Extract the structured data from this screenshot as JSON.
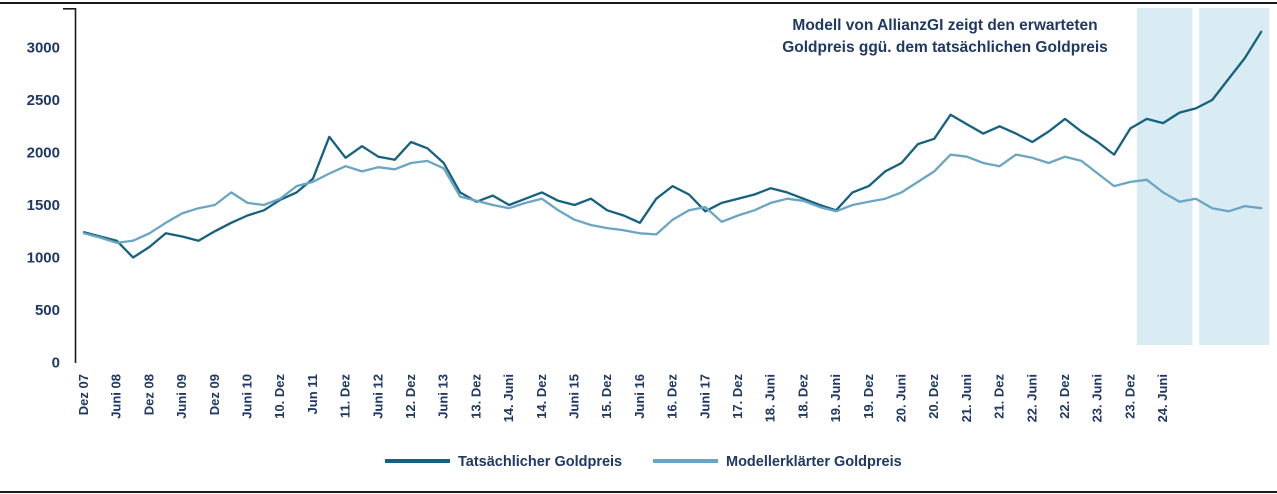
{
  "title": {
    "line1": "Modell von AllianzGI zeigt den erwarteten",
    "line2": "Goldpreis ggü. dem tatsächlichen Goldpreis",
    "color": "#1f3864"
  },
  "legend": {
    "items": [
      {
        "label": "Tatsächlicher Goldpreis",
        "color": "#15617f"
      },
      {
        "label": "Modellerklärter Goldpreis",
        "color": "#6aa5c4"
      }
    ]
  },
  "chart_data": {
    "type": "line",
    "title": "Modell von AllianzGI zeigt den erwarteten Goldpreis ggü. dem tatsächlichen Goldpreis",
    "xlabel": "",
    "ylabel": "",
    "grid": false,
    "legend_position": "bottom-center",
    "x_unit": "half-year tick index starting Dez 07, samples every 0.5 index (quarterly)",
    "x_tick_labels": [
      "Dez 07",
      "Juni 08",
      "Dez 08",
      "Juni 09",
      "Dez 09",
      "Juni 10",
      "10. Dez",
      "Jun 11",
      "11. Dez",
      "Juni 12",
      "12. Dez",
      "Juni 13",
      "13. Dez",
      "14. Juni",
      "14. Dez",
      "Juni 15",
      "15. Dez",
      "Juni 16",
      "16. Dez",
      "Juni 17",
      "17. Dez",
      "18. Juni",
      "18. Dez",
      "19. Juni",
      "19. Dez",
      "20. Juni",
      "20. Dez",
      "21. Juni",
      "21. Dez",
      "22. Juni",
      "22. Dez",
      "23. Juni",
      "23. Dez",
      "24. Juni"
    ],
    "y_ticks": [
      0,
      500,
      1000,
      1500,
      2000,
      2500,
      3000
    ],
    "ylim": [
      0,
      3300
    ],
    "band_color": "#d9ebf3",
    "highlight_bands": [
      {
        "from": 32.2,
        "to": 33.9
      },
      {
        "from": 34.1,
        "to": 36.25
      }
    ],
    "series": [
      {
        "name": "Tatsächlicher Goldpreis",
        "color": "#15617f",
        "x_step": 0.5,
        "values": [
          1240,
          1200,
          1160,
          1000,
          1100,
          1230,
          1200,
          1160,
          1250,
          1330,
          1400,
          1450,
          1550,
          1620,
          1750,
          2150,
          1950,
          2060,
          1960,
          1930,
          2100,
          2040,
          1900,
          1620,
          1530,
          1590,
          1500,
          1560,
          1620,
          1540,
          1500,
          1560,
          1450,
          1400,
          1330,
          1560,
          1680,
          1600,
          1440,
          1520,
          1560,
          1600,
          1660,
          1620,
          1560,
          1500,
          1450,
          1620,
          1680,
          1820,
          1900,
          2080,
          2130,
          2360,
          2270,
          2180,
          2250,
          2180,
          2100,
          2200,
          2320,
          2200,
          2100,
          1980,
          2230,
          2320,
          2280,
          2380,
          2420,
          2500,
          2700,
          2900,
          3150
        ]
      },
      {
        "name": "Modellerklärter Goldpreis",
        "color": "#6aa5c4",
        "x_step": 0.5,
        "values": [
          1230,
          1190,
          1140,
          1160,
          1230,
          1330,
          1420,
          1470,
          1500,
          1620,
          1520,
          1500,
          1560,
          1680,
          1720,
          1800,
          1870,
          1820,
          1860,
          1840,
          1900,
          1920,
          1850,
          1580,
          1540,
          1500,
          1470,
          1520,
          1560,
          1450,
          1360,
          1310,
          1280,
          1260,
          1230,
          1220,
          1360,
          1450,
          1480,
          1340,
          1400,
          1450,
          1520,
          1560,
          1540,
          1480,
          1440,
          1500,
          1530,
          1560,
          1620,
          1720,
          1820,
          1980,
          1960,
          1900,
          1870,
          1980,
          1950,
          1900,
          1960,
          1920,
          1800,
          1680,
          1720,
          1740,
          1620,
          1530,
          1560,
          1470,
          1440,
          1490,
          1470
        ]
      }
    ]
  }
}
